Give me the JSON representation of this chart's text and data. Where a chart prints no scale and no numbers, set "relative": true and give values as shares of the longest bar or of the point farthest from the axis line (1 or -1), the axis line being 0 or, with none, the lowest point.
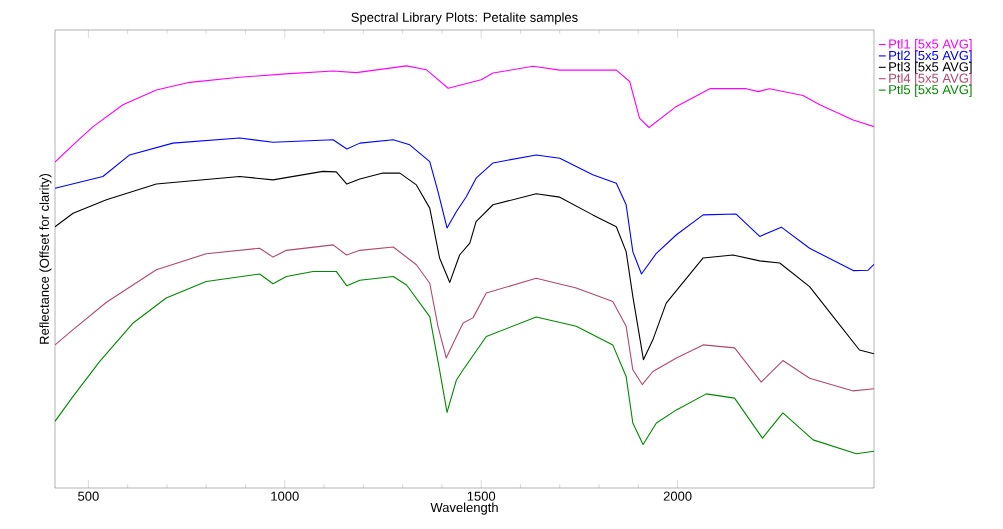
{
  "chart_data": {
    "type": "line",
    "title": "Spectral Library Plots: Petalite samples",
    "xlabel": "Wavelength",
    "ylabel": "Reflectance (Offset for clarity)",
    "relative": true,
    "xlim": [
      415,
      2500
    ],
    "xticks": [
      500,
      1000,
      1500,
      2000
    ],
    "legend": "top right",
    "marker": "none",
    "line_style": "solid",
    "series": [
      {
        "name": "Ptl1 [5x5 AVG]",
        "color": "#ff00ff",
        "x": [
          415,
          461,
          512,
          588,
          673,
          758,
          885,
          1002,
          1123,
          1182,
          1310,
          1360,
          1416,
          1500,
          1530,
          1632,
          1700,
          1844,
          1878,
          1903,
          1927,
          1997,
          2082,
          2175,
          2205,
          2234,
          2319,
          2362,
          2447,
          2500
        ],
        "values": [
          0.772,
          0.813,
          0.856,
          0.908,
          0.943,
          0.961,
          0.973,
          0.981,
          0.988,
          0.984,
          1.0,
          0.991,
          0.947,
          0.967,
          0.983,
          0.999,
          0.99,
          0.99,
          0.963,
          0.876,
          0.854,
          0.904,
          0.946,
          0.946,
          0.939,
          0.946,
          0.93,
          0.908,
          0.872,
          0.856
        ]
      },
      {
        "name": "Ptl2 [5x5 AVG]",
        "color": "#0000ff",
        "x": [
          415,
          537,
          605,
          715,
          885,
          970,
          1123,
          1158,
          1191,
          1276,
          1318,
          1369,
          1390,
          1413,
          1437,
          1462,
          1487,
          1530,
          1640,
          1700,
          1784,
          1844,
          1869,
          1886,
          1908,
          1946,
          1997,
          2065,
          2149,
          2209,
          2264,
          2336,
          2447,
          2485,
          2500
        ],
        "values": [
          0.71,
          0.738,
          0.789,
          0.817,
          0.829,
          0.819,
          0.825,
          0.803,
          0.817,
          0.825,
          0.813,
          0.773,
          0.702,
          0.616,
          0.655,
          0.69,
          0.734,
          0.77,
          0.789,
          0.781,
          0.742,
          0.722,
          0.671,
          0.56,
          0.507,
          0.556,
          0.6,
          0.647,
          0.649,
          0.596,
          0.618,
          0.568,
          0.515,
          0.516,
          0.53
        ]
      },
      {
        "name": "Ptl3 [5x5 AVG]",
        "color": "#000000",
        "x": [
          415,
          461,
          546,
          673,
          885,
          970,
          1097,
          1131,
          1158,
          1191,
          1250,
          1293,
          1335,
          1369,
          1394,
          1420,
          1445,
          1471,
          1487,
          1530,
          1640,
          1700,
          1784,
          1844,
          1869,
          1886,
          1913,
          1937,
          1971,
          2065,
          2141,
          2209,
          2260,
          2336,
          2396,
          2463,
          2500
        ],
        "values": [
          0.619,
          0.651,
          0.683,
          0.72,
          0.738,
          0.73,
          0.75,
          0.749,
          0.72,
          0.732,
          0.746,
          0.746,
          0.718,
          0.663,
          0.545,
          0.487,
          0.552,
          0.58,
          0.631,
          0.671,
          0.697,
          0.689,
          0.647,
          0.619,
          0.56,
          0.454,
          0.304,
          0.351,
          0.438,
          0.545,
          0.552,
          0.538,
          0.533,
          0.477,
          0.406,
          0.327,
          0.318
        ]
      },
      {
        "name": "Ptl4 [5x5 AVG]",
        "color": "#b04870",
        "x": [
          415,
          461,
          546,
          673,
          800,
          936,
          970,
          1004,
          1123,
          1157,
          1191,
          1276,
          1335,
          1369,
          1390,
          1411,
          1437,
          1454,
          1479,
          1513,
          1640,
          1742,
          1835,
          1869,
          1886,
          1910,
          1937,
          1997,
          2065,
          2145,
          2213,
          2268,
          2336,
          2447,
          2500
        ],
        "values": [
          0.339,
          0.375,
          0.44,
          0.517,
          0.555,
          0.568,
          0.547,
          0.563,
          0.576,
          0.552,
          0.563,
          0.571,
          0.529,
          0.485,
          0.383,
          0.308,
          0.359,
          0.391,
          0.403,
          0.462,
          0.497,
          0.474,
          0.442,
          0.383,
          0.28,
          0.245,
          0.276,
          0.308,
          0.339,
          0.332,
          0.251,
          0.302,
          0.26,
          0.23,
          0.235
        ]
      },
      {
        "name": "Ptl5 [5x5 AVG]",
        "color": "#008800",
        "x": [
          415,
          461,
          529,
          614,
          698,
          800,
          936,
          970,
          1004,
          1072,
          1131,
          1158,
          1191,
          1276,
          1310,
          1369,
          1394,
          1413,
          1437,
          1454,
          1513,
          1640,
          1742,
          1835,
          1869,
          1886,
          1912,
          1946,
          1997,
          2073,
          2145,
          2216,
          2268,
          2345,
          2455,
          2500
        ],
        "values": [
          0.158,
          0.217,
          0.3,
          0.391,
          0.45,
          0.489,
          0.507,
          0.484,
          0.501,
          0.513,
          0.513,
          0.479,
          0.492,
          0.501,
          0.481,
          0.406,
          0.28,
          0.179,
          0.256,
          0.28,
          0.359,
          0.405,
          0.383,
          0.339,
          0.264,
          0.154,
          0.103,
          0.154,
          0.185,
          0.223,
          0.213,
          0.118,
          0.178,
          0.114,
          0.081,
          0.087
        ]
      }
    ]
  }
}
